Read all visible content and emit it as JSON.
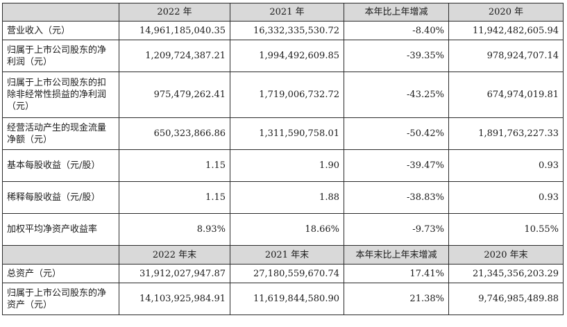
{
  "header1": [
    "",
    "2022 年",
    "2021 年",
    "本年比上年增减",
    "2020 年"
  ],
  "rows1": [
    {
      "label": "营业收入（元）",
      "values": [
        "14,961,185,040.35",
        "16,332,335,530.72",
        "-8.40%",
        "11,942,482,605.94"
      ]
    },
    {
      "label": "归属于上市公司股东的净利润（元）",
      "values": [
        "1,209,724,387.21",
        "1,994,492,609.85",
        "-39.35%",
        "978,924,707.14"
      ]
    },
    {
      "label": "归属于上市公司股东的扣除非经常性损益的净利润（元）",
      "values": [
        "975,479,262.41",
        "1,719,006,732.72",
        "-43.25%",
        "674,974,019.81"
      ]
    },
    {
      "label": "经营活动产生的现金流量净额（元）",
      "values": [
        "650,323,866.86",
        "1,311,590,758.01",
        "-50.42%",
        "1,891,763,227.33"
      ]
    },
    {
      "label": "基本每股收益（元/股）",
      "values": [
        "1.15",
        "1.90",
        "-39.47%",
        "0.93"
      ]
    },
    {
      "label": "稀释每股收益（元/股）",
      "values": [
        "1.15",
        "1.88",
        "-38.83%",
        "0.93"
      ]
    },
    {
      "label": "加权平均净资产收益率",
      "values": [
        "8.93%",
        "18.66%",
        "-9.73%",
        "10.55%"
      ]
    }
  ],
  "header2": [
    "",
    "2022 年末",
    "2021 年末",
    "本年末比上年末增减",
    "2020 年末"
  ],
  "rows2": [
    {
      "label": "总资产（元）",
      "values": [
        "31,912,027,947.87",
        "27,180,559,670.74",
        "17.41%",
        "21,345,356,203.29"
      ]
    },
    {
      "label": "归属于上市公司股东的净资产（元）",
      "values": [
        "14,103,925,984.91",
        "11,619,844,580.90",
        "21.38%",
        "9,746,985,489.88"
      ]
    }
  ]
}
